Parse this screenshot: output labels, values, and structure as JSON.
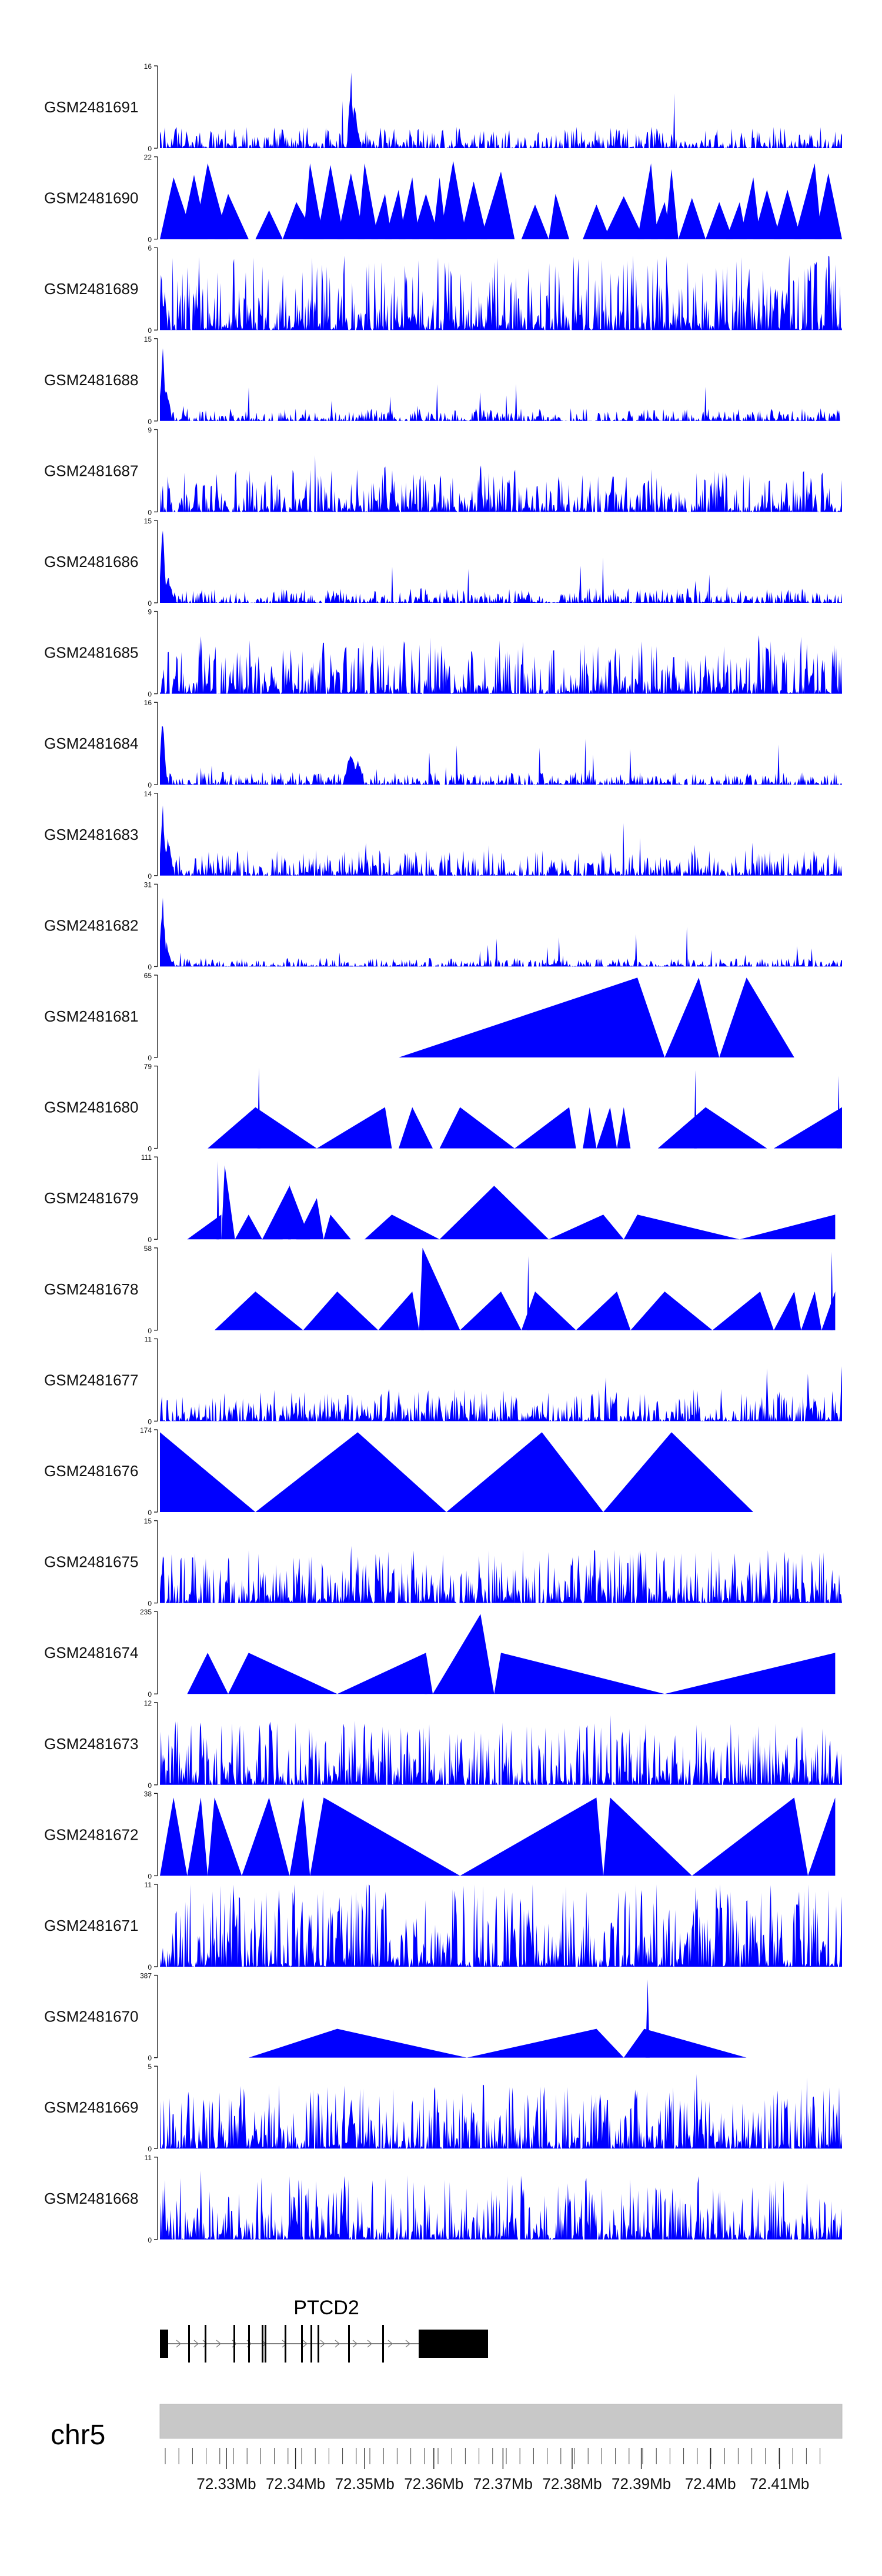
{
  "chart_data": {
    "type": "area",
    "title": "",
    "track_color": "#0000ff",
    "chromosome": "chr5",
    "gene": {
      "name": "PTCD2"
    },
    "x_ticks": [
      "72.33Mb",
      "72.34Mb",
      "72.35Mb",
      "72.36Mb",
      "72.37Mb",
      "72.38Mb",
      "72.39Mb",
      "72.4Mb",
      "72.41Mb"
    ],
    "tracks": [
      {
        "name": "GSM2481691",
        "ymax": "16",
        "ymin": "0",
        "style": "dense",
        "seed": 11,
        "base": 0.1,
        "peaks": [
          [
            0.28,
            1.0,
            0.006
          ],
          [
            0.285,
            0.55,
            0.01
          ]
        ]
      },
      {
        "name": "GSM2481690",
        "ymax": "22",
        "ymin": "0",
        "style": "tri",
        "seed": 12,
        "tris": [
          [
            0.0,
            0.02,
            0.05,
            0.75
          ],
          [
            0.03,
            0.05,
            0.07,
            0.78
          ],
          [
            0.05,
            0.07,
            0.1,
            0.92
          ],
          [
            0.08,
            0.1,
            0.13,
            0.55
          ],
          [
            0.14,
            0.16,
            0.18,
            0.35
          ],
          [
            0.18,
            0.2,
            0.23,
            0.45
          ],
          [
            0.21,
            0.22,
            0.24,
            0.92
          ],
          [
            0.23,
            0.25,
            0.27,
            0.9
          ],
          [
            0.26,
            0.28,
            0.3,
            0.8
          ],
          [
            0.29,
            0.3,
            0.32,
            0.92
          ],
          [
            0.31,
            0.33,
            0.34,
            0.55
          ],
          [
            0.33,
            0.35,
            0.36,
            0.6
          ],
          [
            0.35,
            0.37,
            0.38,
            0.75
          ],
          [
            0.37,
            0.39,
            0.41,
            0.55
          ],
          [
            0.4,
            0.41,
            0.42,
            0.75
          ],
          [
            0.41,
            0.43,
            0.45,
            0.95
          ],
          [
            0.44,
            0.46,
            0.48,
            0.7
          ],
          [
            0.47,
            0.5,
            0.52,
            0.82
          ],
          [
            0.53,
            0.55,
            0.57,
            0.42
          ],
          [
            0.57,
            0.58,
            0.6,
            0.55
          ],
          [
            0.62,
            0.64,
            0.66,
            0.42
          ],
          [
            0.65,
            0.68,
            0.71,
            0.52
          ],
          [
            0.7,
            0.72,
            0.73,
            0.92
          ],
          [
            0.72,
            0.74,
            0.75,
            0.45
          ],
          [
            0.74,
            0.75,
            0.76,
            0.85
          ],
          [
            0.76,
            0.78,
            0.8,
            0.5
          ],
          [
            0.8,
            0.82,
            0.84,
            0.45
          ],
          [
            0.83,
            0.85,
            0.86,
            0.45
          ],
          [
            0.85,
            0.87,
            0.88,
            0.75
          ],
          [
            0.87,
            0.89,
            0.91,
            0.6
          ],
          [
            0.9,
            0.92,
            0.94,
            0.6
          ],
          [
            0.93,
            0.96,
            0.97,
            0.92
          ],
          [
            0.96,
            0.98,
            1.0,
            0.8
          ]
        ]
      },
      {
        "name": "GSM2481689",
        "ymax": "6",
        "ymin": "0",
        "style": "dense",
        "seed": 13,
        "base": 0.35,
        "peaks": [
          [
            0.002,
            0.85,
            0.004
          ]
        ]
      },
      {
        "name": "GSM2481688",
        "ymax": "15",
        "ymin": "0",
        "style": "dense",
        "seed": 14,
        "base": 0.06,
        "peaks": [
          [
            0.004,
            1.0,
            0.006
          ],
          [
            0.01,
            0.45,
            0.008
          ]
        ]
      },
      {
        "name": "GSM2481687",
        "ymax": "9",
        "ymin": "0",
        "style": "dense",
        "seed": 15,
        "base": 0.2,
        "peaks": [
          [
            0.33,
            0.82,
            0.003
          ],
          [
            0.47,
            0.82,
            0.003
          ],
          [
            0.82,
            0.4,
            0.003
          ]
        ]
      },
      {
        "name": "GSM2481686",
        "ymax": "15",
        "ymin": "0",
        "style": "dense",
        "seed": 16,
        "base": 0.07,
        "peaks": [
          [
            0.004,
            0.98,
            0.006
          ],
          [
            0.012,
            0.35,
            0.01
          ]
        ]
      },
      {
        "name": "GSM2481685",
        "ymax": "9",
        "ymin": "0",
        "style": "dense",
        "seed": 17,
        "base": 0.25,
        "peaks": [
          [
            0.06,
            0.95,
            0.003
          ],
          [
            0.8,
            0.55,
            0.003
          ]
        ]
      },
      {
        "name": "GSM2481684",
        "ymax": "16",
        "ymin": "0",
        "style": "dense",
        "seed": 18,
        "base": 0.06,
        "peaks": [
          [
            0.004,
            0.98,
            0.006
          ],
          [
            0.28,
            0.45,
            0.012
          ],
          [
            0.29,
            0.35,
            0.01
          ]
        ]
      },
      {
        "name": "GSM2481683",
        "ymax": "14",
        "ymin": "0",
        "style": "dense",
        "seed": 19,
        "base": 0.12,
        "peaks": [
          [
            0.004,
            0.95,
            0.006
          ],
          [
            0.012,
            0.5,
            0.008
          ]
        ]
      },
      {
        "name": "GSM2481682",
        "ymax": "31",
        "ymin": "0",
        "style": "dense",
        "seed": 20,
        "base": 0.04,
        "peaks": [
          [
            0.004,
            0.95,
            0.006
          ],
          [
            0.01,
            0.3,
            0.008
          ]
        ]
      },
      {
        "name": "GSM2481681",
        "ymax": "65",
        "ymin": "0",
        "style": "tri",
        "seed": 21,
        "tris": [
          [
            0.35,
            0.7,
            0.74,
            0.97
          ],
          [
            0.74,
            0.79,
            0.82,
            0.97
          ],
          [
            0.82,
            0.86,
            0.93,
            0.97
          ]
        ]
      },
      {
        "name": "GSM2481680",
        "ymax": "79",
        "ymin": "0",
        "style": "tri",
        "seed": 22,
        "tris": [
          [
            0.07,
            0.14,
            0.23,
            0.5
          ],
          [
            0.23,
            0.33,
            0.34,
            0.5
          ],
          [
            0.35,
            0.37,
            0.4,
            0.5
          ],
          [
            0.41,
            0.44,
            0.52,
            0.5
          ],
          [
            0.52,
            0.6,
            0.61,
            0.5
          ],
          [
            0.62,
            0.63,
            0.64,
            0.5
          ],
          [
            0.64,
            0.66,
            0.67,
            0.5
          ],
          [
            0.67,
            0.68,
            0.69,
            0.5
          ],
          [
            0.73,
            0.8,
            0.89,
            0.5
          ],
          [
            0.9,
            1.0,
            1.0,
            0.5
          ]
        ],
        "peaks": [
          [
            0.145,
            0.98,
            0.002
          ],
          [
            0.785,
            0.95,
            0.002
          ],
          [
            0.995,
            0.88,
            0.002
          ]
        ]
      },
      {
        "name": "GSM2481679",
        "ymax": "111",
        "ymin": "0",
        "style": "tri",
        "seed": 23,
        "tris": [
          [
            0.04,
            0.09,
            0.09,
            0.3
          ],
          [
            0.09,
            0.095,
            0.11,
            0.9
          ],
          [
            0.11,
            0.13,
            0.15,
            0.3
          ],
          [
            0.15,
            0.17,
            0.18,
            0.28
          ],
          [
            0.15,
            0.19,
            0.22,
            0.65
          ],
          [
            0.2,
            0.23,
            0.24,
            0.5
          ],
          [
            0.24,
            0.25,
            0.28,
            0.3
          ],
          [
            0.3,
            0.34,
            0.41,
            0.3
          ],
          [
            0.41,
            0.49,
            0.57,
            0.65
          ],
          [
            0.57,
            0.65,
            0.68,
            0.3
          ],
          [
            0.68,
            0.7,
            0.85,
            0.3
          ],
          [
            0.85,
            0.99,
            0.99,
            0.3
          ]
        ],
        "peaks": [
          [
            0.085,
            0.95,
            0.002
          ],
          [
            0.19,
            0.68,
            0.002
          ]
        ]
      },
      {
        "name": "GSM2481678",
        "ymax": "58",
        "ymin": "0",
        "style": "tri",
        "seed": 24,
        "tris": [
          [
            0.08,
            0.14,
            0.21,
            0.47
          ],
          [
            0.21,
            0.26,
            0.32,
            0.47
          ],
          [
            0.32,
            0.37,
            0.38,
            0.47
          ],
          [
            0.38,
            0.385,
            0.44,
            1.0
          ],
          [
            0.44,
            0.5,
            0.53,
            0.47
          ],
          [
            0.53,
            0.55,
            0.61,
            0.47
          ],
          [
            0.61,
            0.67,
            0.69,
            0.47
          ],
          [
            0.69,
            0.74,
            0.81,
            0.47
          ],
          [
            0.81,
            0.88,
            0.9,
            0.47
          ],
          [
            0.9,
            0.93,
            0.94,
            0.47
          ],
          [
            0.94,
            0.96,
            0.97,
            0.47
          ],
          [
            0.97,
            0.99,
            0.99,
            0.47
          ]
        ],
        "peaks": [
          [
            0.385,
            0.98,
            0.002
          ],
          [
            0.54,
            0.9,
            0.002
          ],
          [
            0.985,
            0.95,
            0.002
          ]
        ]
      },
      {
        "name": "GSM2481677",
        "ymax": "11",
        "ymin": "0",
        "style": "dense",
        "seed": 25,
        "base": 0.15,
        "peaks": [
          [
            0.89,
            0.92,
            0.002
          ],
          [
            0.95,
            0.6,
            0.002
          ],
          [
            1.0,
            0.85,
            0.003
          ]
        ]
      },
      {
        "name": "GSM2481676",
        "ymax": "174",
        "ymin": "0",
        "style": "tri",
        "seed": 26,
        "tris": [
          [
            0.0,
            0.0,
            0.14,
            0.97
          ],
          [
            0.14,
            0.29,
            0.42,
            0.97
          ],
          [
            0.42,
            0.56,
            0.65,
            0.97
          ],
          [
            0.65,
            0.75,
            0.87,
            0.97
          ]
        ]
      },
      {
        "name": "GSM2481675",
        "ymax": "15",
        "ymin": "0",
        "style": "dense",
        "seed": 27,
        "base": 0.25,
        "peaks": [
          [
            0.28,
            0.98,
            0.002
          ],
          [
            0.47,
            0.45,
            0.003
          ],
          [
            0.88,
            0.8,
            0.002
          ]
        ]
      },
      {
        "name": "GSM2481674",
        "ymax": "235",
        "ymin": "0",
        "style": "tri",
        "seed": 28,
        "tris": [
          [
            0.04,
            0.07,
            0.1,
            0.5
          ],
          [
            0.1,
            0.13,
            0.26,
            0.5
          ],
          [
            0.26,
            0.39,
            0.4,
            0.5
          ],
          [
            0.4,
            0.47,
            0.49,
            0.97
          ],
          [
            0.49,
            0.5,
            0.74,
            0.5
          ],
          [
            0.74,
            0.99,
            0.99,
            0.5
          ]
        ],
        "peaks": [
          [
            0.39,
            0.5,
            0.002
          ]
        ]
      },
      {
        "name": "GSM2481673",
        "ymax": "12",
        "ymin": "0",
        "style": "dense",
        "seed": 29,
        "base": 0.3
      },
      {
        "name": "GSM2481672",
        "ymax": "38",
        "ymin": "0",
        "style": "tri",
        "seed": 30,
        "tris": [
          [
            0.0,
            0.02,
            0.04,
            0.95
          ],
          [
            0.04,
            0.06,
            0.07,
            0.95
          ],
          [
            0.07,
            0.08,
            0.12,
            0.95
          ],
          [
            0.12,
            0.16,
            0.19,
            0.95
          ],
          [
            0.19,
            0.21,
            0.22,
            0.95
          ],
          [
            0.22,
            0.24,
            0.44,
            0.95
          ],
          [
            0.44,
            0.64,
            0.65,
            0.95
          ],
          [
            0.65,
            0.66,
            0.78,
            0.95
          ],
          [
            0.78,
            0.93,
            0.95,
            0.95
          ],
          [
            0.95,
            0.99,
            0.99,
            0.95
          ]
        ]
      },
      {
        "name": "GSM2481671",
        "ymax": "11",
        "ymin": "0",
        "style": "dense",
        "seed": 31,
        "base": 0.4,
        "peaks": [
          [
            0.26,
            0.92,
            0.002
          ],
          [
            0.52,
            0.82,
            0.002
          ],
          [
            1.0,
            0.95,
            0.003
          ]
        ]
      },
      {
        "name": "GSM2481670",
        "ymax": "387",
        "ymin": "0",
        "style": "tri",
        "seed": 32,
        "tris": [
          [
            0.13,
            0.26,
            0.45,
            0.35
          ],
          [
            0.45,
            0.64,
            0.68,
            0.35
          ],
          [
            0.68,
            0.71,
            0.86,
            0.35
          ]
        ],
        "peaks": [
          [
            0.715,
            0.95,
            0.003
          ]
        ]
      },
      {
        "name": "GSM2481669",
        "ymax": "5",
        "ymin": "0",
        "style": "dense",
        "seed": 33,
        "base": 0.3,
        "peaks": [
          [
            0.27,
            0.98,
            0.002
          ],
          [
            0.28,
            0.75,
            0.006
          ]
        ]
      },
      {
        "name": "GSM2481668",
        "ymax": "11",
        "ymin": "0",
        "style": "dense",
        "seed": 34,
        "base": 0.3,
        "peaks": [
          [
            0.06,
            0.98,
            0.002
          ],
          [
            0.055,
            0.6,
            0.002
          ]
        ]
      }
    ]
  }
}
